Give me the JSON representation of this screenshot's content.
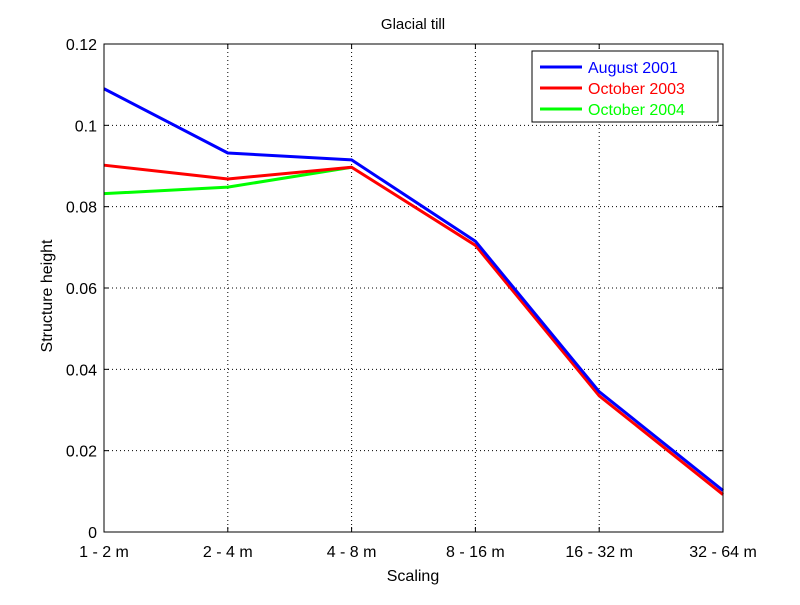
{
  "chart_data": {
    "type": "line",
    "title": "Glacial till",
    "xlabel": "Scaling",
    "ylabel": "Structure height",
    "categories": [
      "1 - 2 m",
      "2 - 4 m",
      "4 - 8 m",
      "8 - 16 m",
      "16 - 32 m",
      "32 - 64 m"
    ],
    "ylim": [
      0,
      0.12
    ],
    "yticks": [
      0,
      0.02,
      0.04,
      0.06,
      0.08,
      0.1,
      0.12
    ],
    "ytick_labels": [
      "0",
      "0.02",
      "0.04",
      "0.06",
      "0.08",
      "0.1",
      "0.12"
    ],
    "grid": true,
    "legend_position": "top-right",
    "series": [
      {
        "name": "August 2001",
        "color": "#0000ff",
        "values": [
          0.109,
          0.0932,
          0.0915,
          0.0715,
          0.0345,
          0.0102
        ]
      },
      {
        "name": "October 2003",
        "color": "#ff0000",
        "values": [
          0.0902,
          0.0868,
          0.0897,
          0.0705,
          0.0335,
          0.0092
        ]
      },
      {
        "name": "October 2004",
        "color": "#00ff00",
        "values": [
          0.0832,
          0.0848,
          0.0897,
          null,
          null,
          null
        ]
      }
    ]
  }
}
